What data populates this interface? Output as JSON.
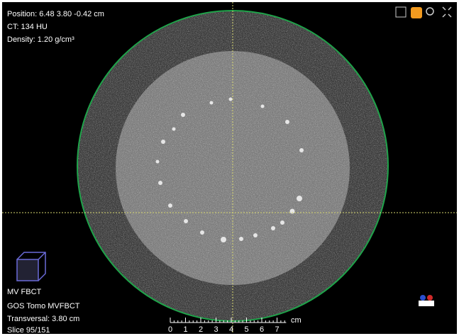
{
  "overlay": {
    "top_left": [
      "Position: 6.48 3.80 -0.42 cm",
      "CT: 134 HU",
      "Density: 1.20 g/cm³"
    ],
    "bottom_left": [
      "MV FBCT",
      "GOS Tomo MVFBCT",
      "Transversal: 3.80 cm",
      "Slice 95/151"
    ]
  },
  "scale": {
    "labels": [
      "0",
      "1",
      "2",
      "3",
      "4",
      "5",
      "6",
      "7"
    ],
    "unit": "cm"
  }
}
